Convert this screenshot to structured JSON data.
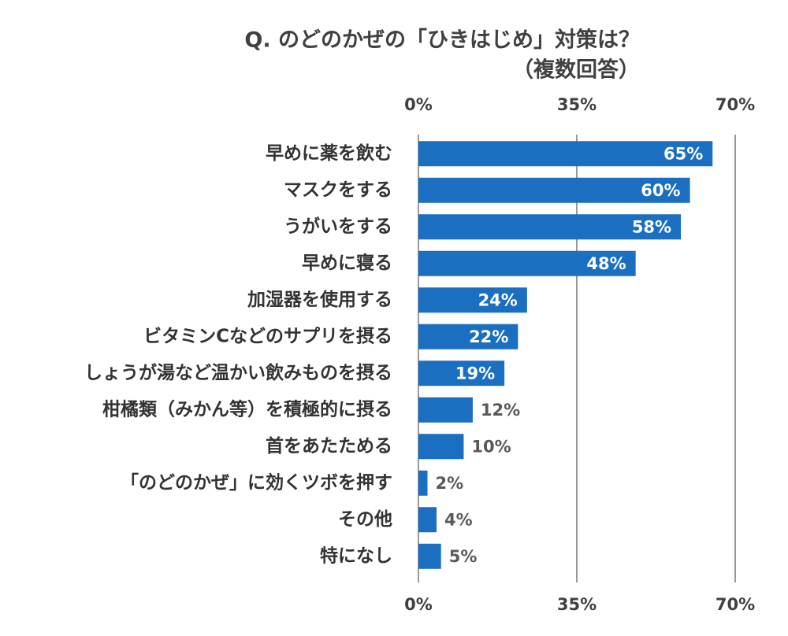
{
  "chart_data": {
    "type": "hbar",
    "title": "Q. のどのかぜの「ひきはじめ」対策は？",
    "subtitle": "（複数回答）",
    "categories": [
      "早めに薬を飲む",
      "マスクをする",
      "うがいをする",
      "早めに寝る",
      "加湿器を使用する",
      "ビタミンCなどのサプリを摂る",
      "しょうが湯など温かい飲みものを摂る",
      "柑橘類（みかん等）を積極的に摂る",
      "首をあたためる",
      "「のどのかぜ」に効くツボを押す",
      "その他",
      "特になし"
    ],
    "values": [
      65,
      60,
      58,
      48,
      24,
      22,
      19,
      12,
      10,
      2,
      4,
      5
    ],
    "value_labels": [
      "65%",
      "60%",
      "58%",
      "48%",
      "24%",
      "22%",
      "19%",
      "12%",
      "10%",
      "2%",
      "4%",
      "5%"
    ],
    "color": "#1a6fc0",
    "xlim": [
      0,
      70
    ],
    "xticks": [
      {
        "value": 0,
        "label": "0%"
      },
      {
        "value": 35,
        "label": "35%"
      },
      {
        "value": 70,
        "label": "70%"
      }
    ],
    "grid": true
  }
}
